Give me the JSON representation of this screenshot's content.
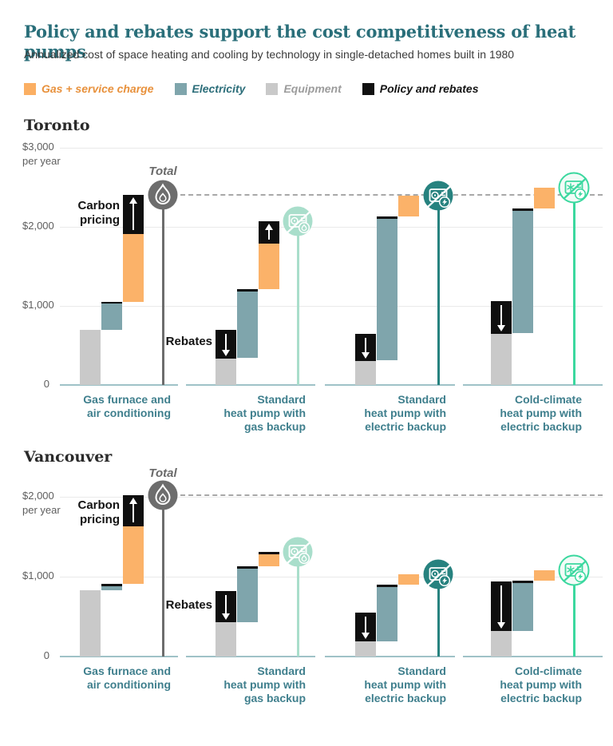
{
  "header": {
    "title": "Policy and rebates support the cost competitiveness of heat pumps",
    "subtitle": "Annualized cost of space heating and cooling by technology in single-detached homes built in 1980"
  },
  "legend": [
    {
      "name": "gas-service-charge",
      "label": "Gas + service charge",
      "swatch_color": "#FBAF63",
      "text_color": "#E8913C"
    },
    {
      "name": "electricity",
      "label": "Electricity",
      "swatch_color": "#7FA5AC",
      "text_color": "#2C6E7A"
    },
    {
      "name": "equipment",
      "label": "Equipment",
      "swatch_color": "#C9C9C9",
      "text_color": "#9C9C9C"
    },
    {
      "name": "policy-and-rebates",
      "label": "Policy and rebates",
      "swatch_color": "#111111",
      "text_color": "#141414"
    }
  ],
  "labels": {
    "total": "Total",
    "carbon_line1": "Carbon",
    "carbon_line2": "pricing",
    "rebates": "Rebates"
  },
  "colors": {
    "gas": "#FBB269",
    "electricity": "#7FA5AC",
    "equipment": "#C9C9C9",
    "policy": "#0F0F0F",
    "title": "#2A6F7A",
    "category_label": "#3F7F8D",
    "axis_line": "#9FC2C7",
    "gridline": "#EAEAEA",
    "dashed_reference": "#A8A8A8",
    "gas_total_line": "#6D6D6D",
    "hp_gas_total_line": "#A9DECB",
    "hp_electric_total_line": "#27827F",
    "hp_cold_total_line": "#3BD89F",
    "arrow": "#FFFFFF"
  },
  "chart_data": {
    "type": "bar",
    "subtype": "stacked-waterfall",
    "title": "Policy and rebates support the cost competitiveness of heat pumps",
    "unit": "dollars per year",
    "legend_entries": [
      "Gas + service charge",
      "Electricity",
      "Equipment",
      "Policy and rebates"
    ],
    "cities": [
      {
        "name": "Toronto",
        "ylim": [
          0,
          3000
        ],
        "yticks": [
          {
            "value": 3000,
            "label": "$3,000",
            "sub": "per year"
          },
          {
            "value": 2000,
            "label": "$2,000"
          },
          {
            "value": 1000,
            "label": "$1,000"
          },
          {
            "value": 0,
            "label": "0"
          }
        ],
        "reference_total": 2400,
        "categories": [
          {
            "label_lines": [
              "Gas furnace and",
              "air conditioning"
            ],
            "icon": "flame",
            "icon_style": "gas",
            "total": 2400,
            "segments": [
              {
                "kind": "equipment",
                "col": 0,
                "range": [
                  0,
                  700
                ]
              },
              {
                "kind": "electricity",
                "col": 1,
                "range": [
                  700,
                  1030
                ]
              },
              {
                "kind": "policy_cap",
                "col": 1,
                "range": [
                  1030,
                  1055
                ]
              },
              {
                "kind": "gas",
                "col": 2,
                "range": [
                  1055,
                  1910
                ]
              },
              {
                "kind": "carbon_pricing",
                "col": 2,
                "range": [
                  1910,
                  2400
                ],
                "arrow": "up"
              }
            ]
          },
          {
            "label_lines": [
              "Standard",
              "heat pump with",
              "gas backup"
            ],
            "icon": "heat-pump-gas",
            "icon_style": "mint",
            "total": 2070,
            "segments": [
              {
                "kind": "equipment",
                "col": 0,
                "range": [
                  0,
                  340
                ]
              },
              {
                "kind": "rebates",
                "col": 0,
                "range": [
                  340,
                  700
                ],
                "arrow": "down"
              },
              {
                "kind": "electricity",
                "col": 1,
                "range": [
                  340,
                  1180
                ]
              },
              {
                "kind": "policy_cap",
                "col": 1,
                "range": [
                  1180,
                  1210
                ]
              },
              {
                "kind": "gas",
                "col": 2,
                "range": [
                  1210,
                  1790
                ]
              },
              {
                "kind": "carbon_pricing",
                "col": 2,
                "range": [
                  1790,
                  2070
                ],
                "arrow": "up"
              }
            ]
          },
          {
            "label_lines": [
              "Standard",
              "heat pump with",
              "electric backup"
            ],
            "icon": "heat-pump-electric",
            "icon_style": "teal",
            "total": 2390,
            "segments": [
              {
                "kind": "equipment",
                "col": 0,
                "range": [
                  0,
                  310
                ]
              },
              {
                "kind": "rebates",
                "col": 0,
                "range": [
                  310,
                  650
                ],
                "arrow": "down"
              },
              {
                "kind": "electricity",
                "col": 1,
                "range": [
                  310,
                  2100
                ]
              },
              {
                "kind": "policy_cap",
                "col": 1,
                "range": [
                  2100,
                  2130
                ]
              },
              {
                "kind": "gas",
                "col": 2,
                "range": [
                  2130,
                  2390
                ]
              }
            ]
          },
          {
            "label_lines": [
              "Cold-climate",
              "heat pump with",
              "electric backup"
            ],
            "icon": "heat-pump-cold",
            "icon_style": "green",
            "total": 2490,
            "segments": [
              {
                "kind": "equipment",
                "col": 0,
                "range": [
                  0,
                  650
                ]
              },
              {
                "kind": "rebates",
                "col": 0,
                "range": [
                  650,
                  1060
                ],
                "arrow": "down"
              },
              {
                "kind": "electricity",
                "col": 1,
                "range": [
                  650,
                  2200
                ]
              },
              {
                "kind": "policy_cap",
                "col": 1,
                "range": [
                  2200,
                  2230
                ]
              },
              {
                "kind": "gas",
                "col": 2,
                "range": [
                  2230,
                  2490
                ]
              }
            ]
          }
        ]
      },
      {
        "name": "Vancouver",
        "ylim": [
          0,
          2300
        ],
        "yticks": [
          {
            "value": 2000,
            "label": "$2,000",
            "sub": "per year"
          },
          {
            "value": 1000,
            "label": "$1,000"
          },
          {
            "value": 0,
            "label": "0"
          }
        ],
        "reference_total": 2020,
        "categories": [
          {
            "label_lines": [
              "Gas furnace and",
              "air conditioning"
            ],
            "icon": "flame",
            "icon_style": "gas",
            "total": 2020,
            "segments": [
              {
                "kind": "equipment",
                "col": 0,
                "range": [
                  0,
                  830
                ]
              },
              {
                "kind": "electricity",
                "col": 1,
                "range": [
                  830,
                  890
                ]
              },
              {
                "kind": "policy_cap",
                "col": 1,
                "range": [
                  890,
                  915
                ]
              },
              {
                "kind": "gas",
                "col": 2,
                "range": [
                  915,
                  1630
                ]
              },
              {
                "kind": "carbon_pricing",
                "col": 2,
                "range": [
                  1630,
                  2020
                ],
                "arrow": "up"
              }
            ]
          },
          {
            "label_lines": [
              "Standard",
              "heat pump with",
              "gas backup"
            ],
            "icon": "heat-pump-gas",
            "icon_style": "mint",
            "total": 1315,
            "segments": [
              {
                "kind": "equipment",
                "col": 0,
                "range": [
                  0,
                  430
                ]
              },
              {
                "kind": "rebates",
                "col": 0,
                "range": [
                  430,
                  820
                ],
                "arrow": "down"
              },
              {
                "kind": "electricity",
                "col": 1,
                "range": [
                  430,
                  1100
                ]
              },
              {
                "kind": "policy_cap",
                "col": 1,
                "range": [
                  1100,
                  1130
                ]
              },
              {
                "kind": "gas",
                "col": 2,
                "range": [
                  1130,
                  1290
                ]
              },
              {
                "kind": "policy_cap",
                "col": 2,
                "range": [
                  1290,
                  1315
                ]
              }
            ]
          },
          {
            "label_lines": [
              "Standard",
              "heat pump with",
              "electric backup"
            ],
            "icon": "heat-pump-electric",
            "icon_style": "teal",
            "total": 1030,
            "segments": [
              {
                "kind": "equipment",
                "col": 0,
                "range": [
                  0,
                  190
                ]
              },
              {
                "kind": "rebates",
                "col": 0,
                "range": [
                  190,
                  550
                ],
                "arrow": "down"
              },
              {
                "kind": "electricity",
                "col": 1,
                "range": [
                  190,
                  870
                ]
              },
              {
                "kind": "policy_cap",
                "col": 1,
                "range": [
                  870,
                  900
                ]
              },
              {
                "kind": "gas",
                "col": 2,
                "range": [
                  900,
                  1030
                ]
              }
            ]
          },
          {
            "label_lines": [
              "Cold-climate",
              "heat pump with",
              "electric backup"
            ],
            "icon": "heat-pump-cold",
            "icon_style": "green",
            "total": 1080,
            "segments": [
              {
                "kind": "equipment",
                "col": 0,
                "range": [
                  0,
                  320
                ]
              },
              {
                "kind": "rebates",
                "col": 0,
                "range": [
                  320,
                  940
                ],
                "arrow": "down"
              },
              {
                "kind": "electricity",
                "col": 1,
                "range": [
                  320,
                  930
                ]
              },
              {
                "kind": "policy_cap",
                "col": 1,
                "range": [
                  930,
                  955
                ]
              },
              {
                "kind": "gas",
                "col": 2,
                "range": [
                  955,
                  1080
                ]
              }
            ]
          }
        ]
      }
    ]
  }
}
